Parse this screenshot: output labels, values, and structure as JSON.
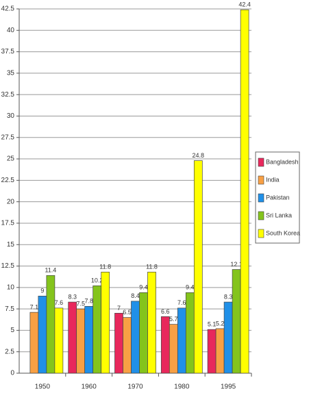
{
  "chart_data": {
    "type": "bar",
    "categories": [
      "1950",
      "1960",
      "1970",
      "1980",
      "1995"
    ],
    "series": [
      {
        "name": "Bangladesh",
        "color": "#e8285c",
        "values": [
          null,
          8.3,
          7,
          6.6,
          5.1
        ]
      },
      {
        "name": "India",
        "color": "#f8a044",
        "values": [
          7.1,
          7.5,
          6.5,
          5.7,
          5.2
        ]
      },
      {
        "name": "Pakistan",
        "color": "#2090e8",
        "values": [
          9,
          7.8,
          8.4,
          7.6,
          8.3
        ]
      },
      {
        "name": "Sri Lanka",
        "color": "#84c41c",
        "values": [
          11.4,
          10.2,
          9.4,
          9.4,
          12.1
        ]
      },
      {
        "name": "South Korea",
        "color": "#ffff00",
        "values": [
          7.6,
          11.8,
          11.8,
          24.8,
          42.4
        ]
      }
    ],
    "ylim": [
      0,
      42.5
    ],
    "yticks": [
      0,
      2.5,
      5,
      7.5,
      10,
      12.5,
      15,
      17.5,
      20,
      22.5,
      25,
      27.5,
      30,
      32.5,
      35,
      37.5,
      40,
      42.5
    ],
    "grid": true,
    "legend": "right"
  }
}
